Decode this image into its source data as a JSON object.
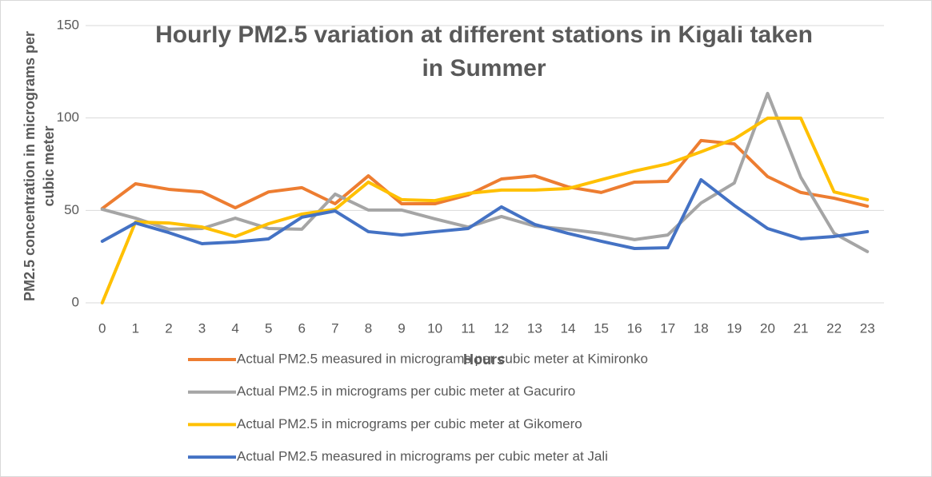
{
  "chart_data": {
    "type": "line",
    "title": [
      "Hourly PM2.5 variation at different stations in Kigali taken",
      "in Summer"
    ],
    "x_axis_label": "Hours",
    "y_axis_label": [
      "PM2.5 concentration  in micrograms per",
      "cubic meter"
    ],
    "categories": [
      0,
      1,
      2,
      3,
      4,
      5,
      6,
      7,
      8,
      9,
      10,
      11,
      12,
      13,
      14,
      15,
      16,
      17,
      18,
      19,
      20,
      21,
      22,
      23
    ],
    "ylim": [
      0,
      150
    ],
    "yticks": [
      0,
      50,
      100,
      150
    ],
    "grid": true,
    "legend": "bottom",
    "series": [
      {
        "name": "Actual PM2.5 measured in micrograms per cubic meter at Kimironko",
        "color": "#ED7D31",
        "values": [
          51,
          64.4,
          61.4,
          60,
          51.4,
          60,
          62.3,
          53.6,
          68.7,
          53.6,
          53.6,
          58.4,
          67,
          68.7,
          62.7,
          59.7,
          65.3,
          65.7,
          87.8,
          86,
          68.3,
          59.7,
          56.6,
          52.3
        ]
      },
      {
        "name": "Actual PM2.5 in micrograms per cubic meter at Gacuriro",
        "color": "#A5A5A5",
        "values": [
          50.6,
          45.8,
          39.8,
          40.2,
          45.8,
          40.2,
          39.8,
          58.8,
          50.2,
          50.2,
          45.4,
          41,
          46.7,
          41.5,
          39.8,
          37.6,
          34.2,
          36.7,
          54,
          64.8,
          113.3,
          67.9,
          37.6,
          27.7
        ]
      },
      {
        "name": "Actual PM2.5  in micrograms per cubic meter at Gikomero",
        "color": "#FFC000",
        "values": [
          0,
          43.7,
          43.2,
          41,
          35.9,
          42.8,
          48,
          50.6,
          65.3,
          55.8,
          55.3,
          59.2,
          61,
          61,
          61.8,
          66.6,
          71.3,
          75.2,
          81.7,
          88.6,
          99.9,
          99.9,
          60,
          55.8
        ]
      },
      {
        "name": "Actual PM2.5 measured in micrograms per cubic meter at Jali",
        "color": "#4472C4",
        "values": [
          33.3,
          43.2,
          38,
          32,
          32.9,
          34.6,
          46.3,
          49.7,
          38.5,
          36.7,
          38.5,
          40.2,
          51.9,
          42.4,
          37.6,
          33.3,
          29.4,
          29.8,
          66.6,
          52.7,
          40.2,
          34.6,
          35.9,
          38.5
        ]
      }
    ]
  }
}
